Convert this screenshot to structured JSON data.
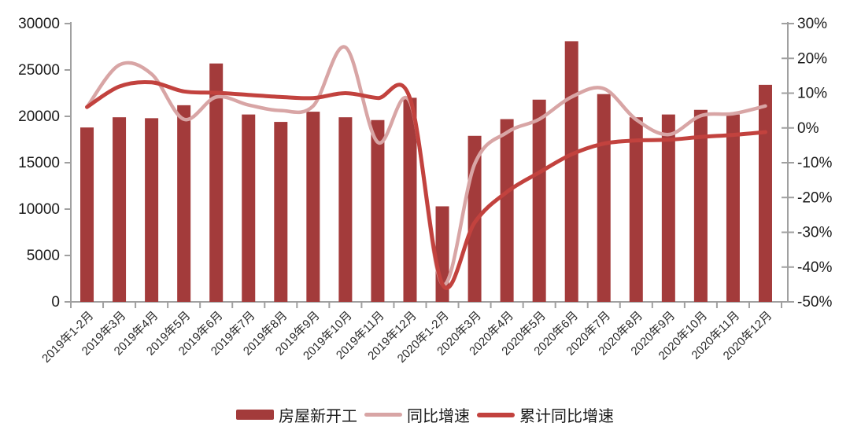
{
  "chart_data": {
    "type": "combo-bar-line",
    "categories": [
      "2019年1-2月",
      "2019年3月",
      "2019年4月",
      "2019年5月",
      "2019年6月",
      "2019年7月",
      "2019年8月",
      "2019年9月",
      "2019年10月",
      "2019年11月",
      "2019年12月",
      "2020年1-2月",
      "2020年3月",
      "2020年4月",
      "2020年5月",
      "2020年6月",
      "2020年7月",
      "2020年8月",
      "2020年9月",
      "2020年10月",
      "2020年11月",
      "2020年12月"
    ],
    "series": [
      {
        "name": "房屋新开工",
        "type": "bar",
        "axis": "left",
        "color": "#a33b3b",
        "values": [
          18800,
          19900,
          19800,
          21200,
          25700,
          20200,
          19400,
          20500,
          19900,
          19600,
          22000,
          10300,
          17900,
          19700,
          21800,
          28100,
          22400,
          19900,
          20200,
          20700,
          20200,
          23400
        ]
      },
      {
        "name": "同比增速",
        "type": "line",
        "axis": "right",
        "color": "#d8a5a5",
        "values": [
          6.0,
          18.1,
          15.5,
          2.5,
          8.9,
          6.6,
          5.0,
          6.3,
          23.2,
          -4.1,
          7.4,
          -44.9,
          -10.4,
          -1.3,
          2.5,
          8.9,
          11.3,
          2.4,
          -1.9,
          3.5,
          4.1,
          6.3
        ]
      },
      {
        "name": "累计同比增速",
        "type": "line",
        "axis": "right",
        "color": "#c2423e",
        "values": [
          6.0,
          11.9,
          13.1,
          10.5,
          10.1,
          9.5,
          8.9,
          8.6,
          10.0,
          8.6,
          8.5,
          -44.9,
          -27.2,
          -18.4,
          -12.8,
          -7.6,
          -4.5,
          -3.6,
          -3.4,
          -2.6,
          -2.0,
          -1.2
        ]
      }
    ],
    "left_axis": {
      "min": 0,
      "max": 30000,
      "step": 5000,
      "tick_labels": [
        "0",
        "5000",
        "10000",
        "15000",
        "20000",
        "25000",
        "30000"
      ]
    },
    "right_axis": {
      "min": -50,
      "max": 30,
      "step": 10,
      "tick_labels": [
        "-50%",
        "-40%",
        "-30%",
        "-20%",
        "-10%",
        "0%",
        "10%",
        "20%",
        "30%"
      ]
    },
    "legend_position": "bottom",
    "grid": false,
    "x_label_rotation_deg": 45
  },
  "colors": {
    "bar": "#a33b3b",
    "yoy_line": "#d8a5a5",
    "cumulative_line": "#c2423e",
    "axis": "#a0a0a0",
    "tick_text": "#1a1a1a",
    "background": "#ffffff"
  }
}
